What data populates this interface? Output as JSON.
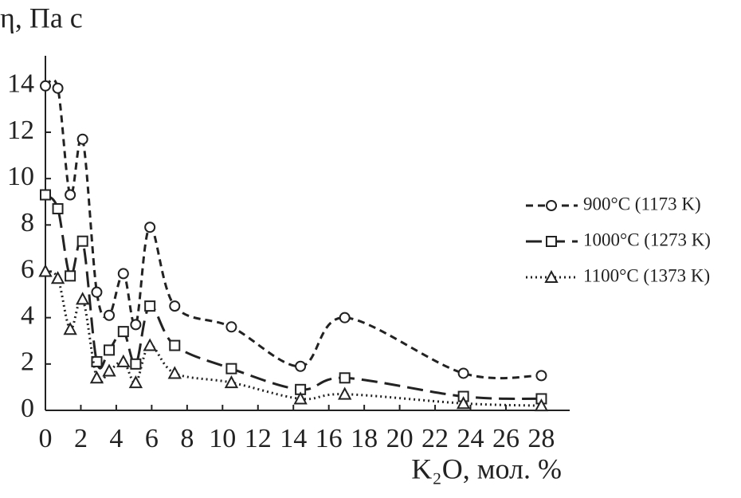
{
  "chart_data": {
    "type": "line",
    "ylabel": "η, Па с",
    "xlabel": "K₂O, мол. %",
    "x": [
      0,
      0.7,
      1.4,
      2.1,
      2.9,
      3.6,
      4.4,
      5.1,
      5.9,
      7.3,
      10.5,
      14.4,
      16.9,
      23.6,
      28
    ],
    "series": [
      {
        "name": "900°C (1173 K)",
        "color": "#222222",
        "marker": "circle",
        "dash": "9 6",
        "values": [
          14.0,
          13.9,
          9.3,
          11.7,
          5.1,
          4.1,
          5.9,
          3.7,
          7.9,
          4.5,
          3.6,
          1.9,
          4.0,
          1.6,
          1.5
        ]
      },
      {
        "name": "1000°C (1273 K)",
        "color": "#222222",
        "marker": "square",
        "dash": "20 9",
        "values": [
          9.3,
          8.7,
          5.8,
          7.3,
          2.1,
          2.6,
          3.4,
          2.0,
          4.5,
          2.8,
          1.8,
          0.9,
          1.4,
          0.6,
          0.5
        ]
      },
      {
        "name": "1100°C (1373 K)",
        "color": "#222222",
        "marker": "triangle",
        "dash": "2 4",
        "values": [
          6.0,
          5.7,
          3.5,
          4.8,
          1.4,
          1.7,
          2.1,
          1.2,
          2.8,
          1.6,
          1.2,
          0.5,
          0.7,
          0.3,
          0.2
        ]
      }
    ],
    "xlim": [
      0,
      29.6
    ],
    "ylim": [
      0,
      15.3
    ],
    "xticks": [
      0,
      2,
      4,
      6,
      8,
      10,
      12,
      14,
      16,
      18,
      20,
      22,
      24,
      26,
      28
    ],
    "yticks": [
      0,
      2,
      4,
      6,
      8,
      10,
      12,
      14
    ],
    "grid": false,
    "legend": "right"
  }
}
